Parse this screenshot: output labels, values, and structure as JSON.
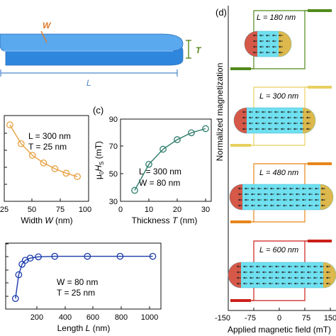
{
  "colors": {
    "bar_fill": "#4a9fe8",
    "bar_edge": "#2f7fc9",
    "width_orange": "#e8a040",
    "width_label": "#e07b2b",
    "thickness_green": "#5a8a1e",
    "length_blue": "#4a86c8",
    "width_curve": "#e8a040",
    "thickness_curve": "#2e7d6b",
    "length_curve": "#1a3aaa",
    "hyst_180": "#4f8a1a",
    "hyst_300": "#e8d060",
    "hyst_480": "#e8851c",
    "hyst_600": "#cc1f1a",
    "domain_fill": "#6fe0f0"
  },
  "panel_a": {
    "label_w": "W",
    "label_t": "T",
    "label_l": "L"
  },
  "chart_data": [
    {
      "type": "scatter",
      "panel": "b",
      "xlabel_text": "Width ",
      "xlabel_var": "W",
      "xlabel_unit": " (nm)",
      "xticks": [
        "25",
        "50",
        "75",
        "100"
      ],
      "xlim": [
        25,
        100
      ],
      "ylim": [
        0,
        250
      ],
      "annotations": [
        "L = 300 nm",
        "T = 25 nm"
      ],
      "x": [
        30,
        40,
        50,
        60,
        70,
        80,
        90
      ],
      "y": [
        223,
        168,
        134,
        112,
        95,
        82,
        72
      ]
    },
    {
      "type": "scatter",
      "panel": "c",
      "panel_label": "(c)",
      "ylabel": "μ₀H_S (mT)",
      "xlabel_text": "Thickness ",
      "xlabel_var": "T",
      "xlabel_unit": " (nm)",
      "xticks": [
        "0",
        "10",
        "20",
        "30"
      ],
      "yticks": [
        "30",
        "50",
        "70",
        "90"
      ],
      "xlim": [
        0,
        32
      ],
      "ylim": [
        30,
        90
      ],
      "annotations": [
        "L = 300 nm",
        "W = 80 nm"
      ],
      "x": [
        5,
        10,
        15,
        20,
        25,
        30
      ],
      "y": [
        38,
        57,
        68,
        75,
        80,
        83
      ]
    },
    {
      "type": "scatter",
      "panel": "e",
      "xlabel_text": "Length ",
      "xlabel_var": "L",
      "xlabel_unit": " (nm)",
      "xticks": [
        "200",
        "400",
        "600",
        "800",
        "1000"
      ],
      "xlim": [
        100,
        1050
      ],
      "ylim": [
        0,
        250
      ],
      "annotations": [
        "W = 80 nm",
        "T = 25 nm"
      ],
      "x": [
        160,
        180,
        200,
        220,
        250,
        300,
        400,
        600,
        800,
        1000
      ],
      "y": [
        40,
        130,
        170,
        185,
        193,
        198,
        200,
        200,
        200,
        200
      ]
    },
    {
      "type": "line",
      "panel": "d",
      "panel_label": "(d)",
      "ylabel": "Normalized magnetization",
      "xlabel": "Applied magnetic field (mT)",
      "xticks": [
        "-150",
        "-75",
        "0",
        "75",
        "150"
      ],
      "xlim": [
        -150,
        150
      ],
      "series": [
        {
          "name": "L = 180 nm",
          "switch_field": 75
        },
        {
          "name": "L = 300 nm",
          "switch_field": 75
        },
        {
          "name": "L = 480 nm",
          "switch_field": 75
        },
        {
          "name": "L = 600 nm",
          "switch_field": 75
        }
      ]
    }
  ]
}
